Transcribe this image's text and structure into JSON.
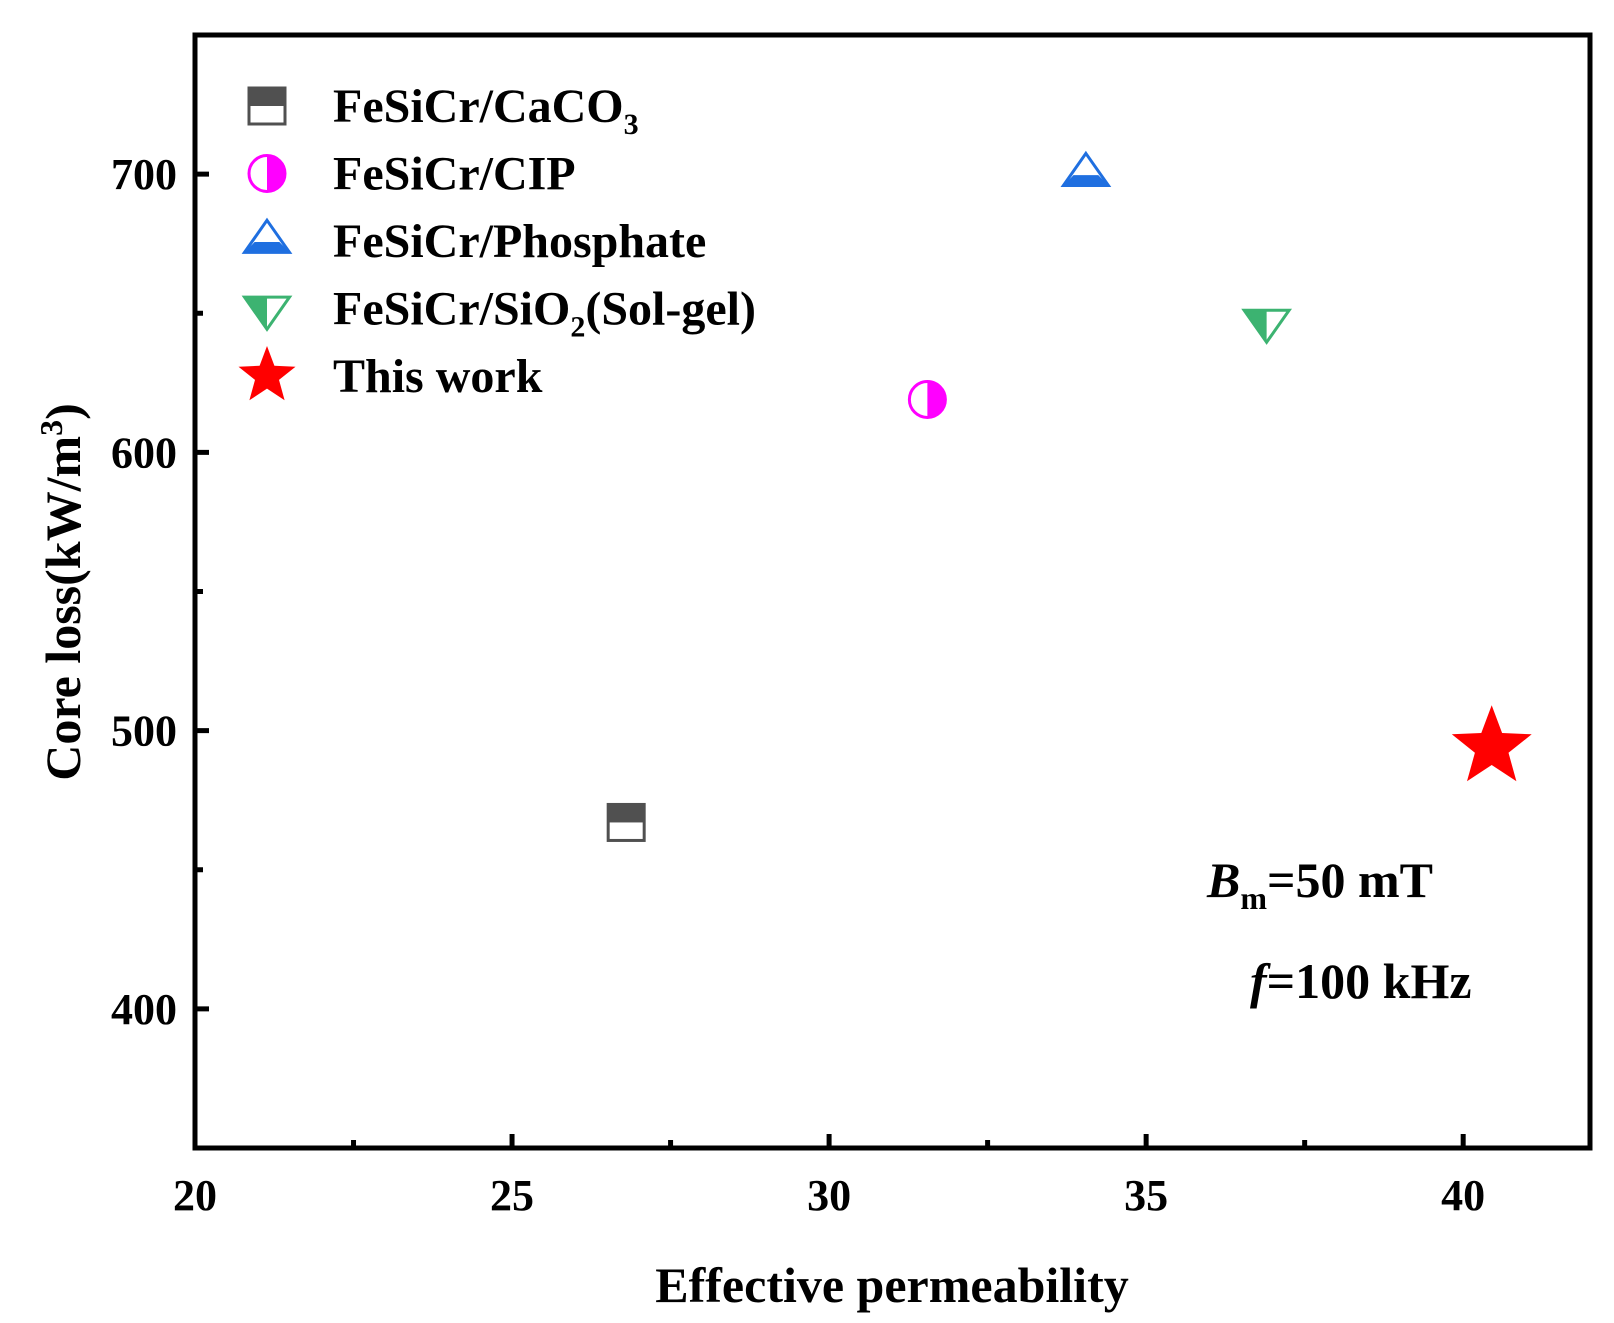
{
  "chart_data": {
    "type": "scatter",
    "xlabel": "Effective permeability",
    "ylabel_prefix": "Core loss(kW/m",
    "ylabel_sup": "3",
    "ylabel_suffix": ")",
    "xlim": [
      20,
      42
    ],
    "ylim": [
      350,
      750
    ],
    "x_ticks": [
      20,
      25,
      30,
      35,
      40
    ],
    "x_minor_ticks": [
      22.5,
      27.5,
      32.5,
      37.5
    ],
    "y_ticks": [
      400,
      500,
      600,
      700
    ],
    "y_minor_ticks": [
      450,
      550,
      650
    ],
    "grid": false,
    "legend_position": "top-left",
    "series": [
      {
        "name": "FeSiCr/CaCO3",
        "label_main": "FeSiCr/CaCO",
        "label_sub": "3",
        "label_rest": "",
        "marker": "square-half-top",
        "color": "#505050",
        "x": [
          26.8
        ],
        "y": [
          467
        ]
      },
      {
        "name": "FeSiCr/CIP",
        "label_main": "FeSiCr/CIP",
        "label_sub": "",
        "label_rest": "",
        "marker": "circle-half-right",
        "color": "#ff00ff",
        "x": [
          31.55
        ],
        "y": [
          619
        ]
      },
      {
        "name": "FeSiCr/Phosphate",
        "label_main": "FeSiCr/Phosphate",
        "label_sub": "",
        "label_rest": "",
        "marker": "triangle-up-half-bottom",
        "color": "#1f6fe0",
        "x": [
          34.05
        ],
        "y": [
          700
        ]
      },
      {
        "name": "FeSiCr/SiO2(Sol-gel)",
        "label_main": "FeSiCr/SiO",
        "label_sub": "2",
        "label_rest": "(Sol-gel)",
        "marker": "triangle-down-half-left",
        "color": "#3cb371",
        "x": [
          36.9
        ],
        "y": [
          647
        ]
      },
      {
        "name": "This work",
        "label_main": "This work",
        "label_sub": "",
        "label_rest": "",
        "marker": "star",
        "color": "#ff0000",
        "x": [
          40.45
        ],
        "y": [
          494
        ]
      }
    ],
    "annotations": {
      "bm_symbol": "B",
      "bm_sub": "m",
      "bm_value": "=50 mT",
      "f_symbol": "f",
      "f_value": "=100 kHz"
    }
  }
}
